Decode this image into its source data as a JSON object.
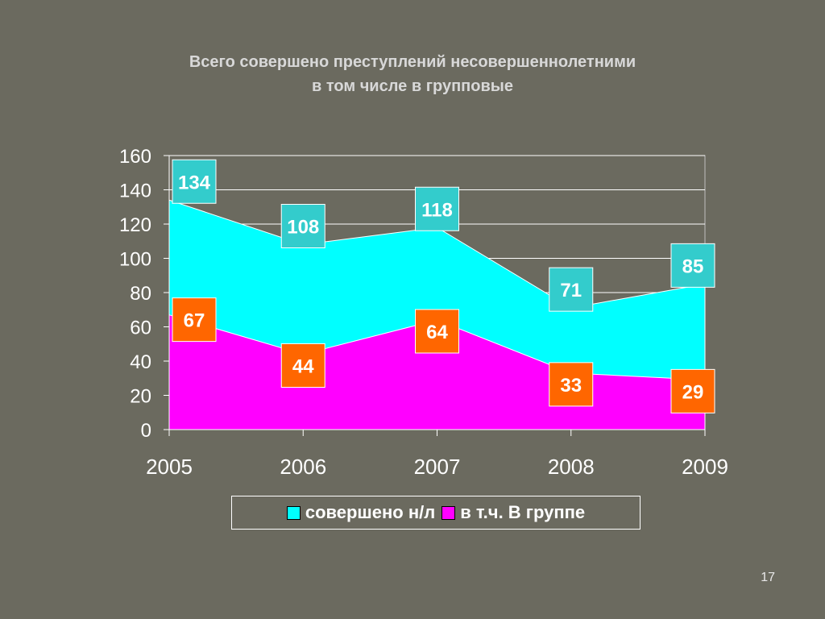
{
  "slide": {
    "title_line1": "Всего совершено преступлений несовершеннолетними",
    "title_line2": "в том числе в групповые",
    "page_number": "17"
  },
  "colors": {
    "background": "#6b6a5f",
    "total_area": "#00ffff",
    "group_area": "#ff00ff",
    "total_label_bg": "#33cccc",
    "group_label_bg": "#ff6600",
    "axis_text": "#ffffff"
  },
  "chart_data": {
    "type": "area",
    "title": "Всего совершено преступлений несовершеннолетними в том числе в групповые",
    "x": [
      "2005",
      "2006",
      "2007",
      "2008",
      "2009"
    ],
    "ylim": [
      0,
      160
    ],
    "yticks": [
      0,
      20,
      40,
      60,
      80,
      100,
      120,
      140,
      160
    ],
    "grid": true,
    "legend_position": "bottom",
    "series": [
      {
        "name": "совершено н/л",
        "values": [
          134,
          108,
          118,
          71,
          85
        ]
      },
      {
        "name": "в т.ч. В группе",
        "values": [
          67,
          44,
          64,
          33,
          29
        ]
      }
    ]
  }
}
